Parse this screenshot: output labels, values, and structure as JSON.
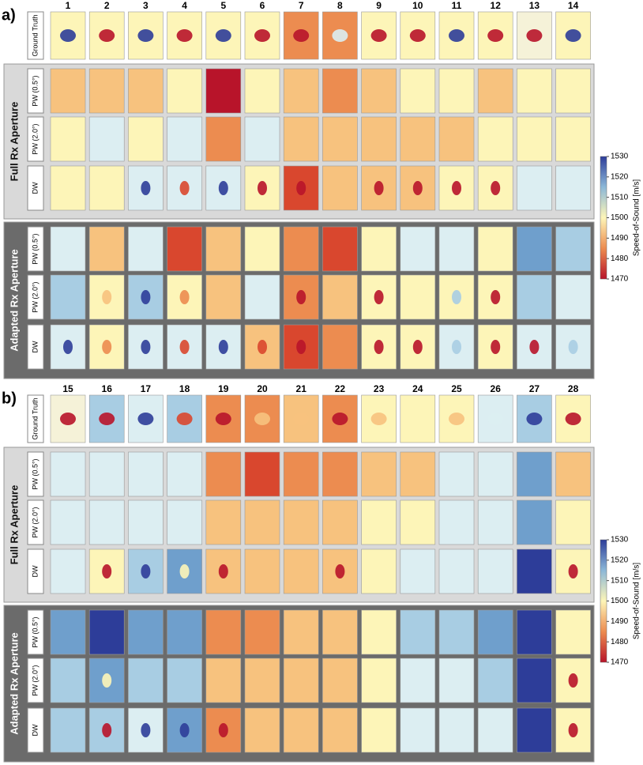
{
  "panels": [
    {
      "label": "a)",
      "columns": [
        1,
        2,
        3,
        4,
        5,
        6,
        7,
        8,
        9,
        10,
        11,
        12,
        13,
        14
      ],
      "ground_truth_label": "Ground Truth",
      "groups": [
        {
          "label": "Full Rx Aperture",
          "rows": [
            "PW (0.5°)",
            "PW (2.0°)",
            "DW"
          ]
        },
        {
          "label": "Adapted Rx Aperture",
          "rows": [
            "PW (0.5°)",
            "PW (2.0°)",
            "DW"
          ]
        }
      ],
      "colorbar": {
        "label": "Speed-of-Sound [m/s]",
        "ticks": [
          1470,
          1480,
          1490,
          1500,
          1510,
          1520,
          1530
        ]
      }
    },
    {
      "label": "b)",
      "columns": [
        15,
        16,
        17,
        18,
        19,
        20,
        21,
        22,
        23,
        24,
        25,
        26,
        27,
        28
      ],
      "ground_truth_label": "Ground Truth",
      "groups": [
        {
          "label": "Full Rx Aperture",
          "rows": [
            "PW (0.5°)",
            "PW (2.0°)",
            "DW"
          ]
        },
        {
          "label": "Adapted Rx Aperture",
          "rows": [
            "PW (0.5°)",
            "PW (2.0°)",
            "DW"
          ]
        }
      ],
      "colorbar": {
        "label": "Speed-of-Sound [m/s]",
        "ticks": [
          1470,
          1480,
          1490,
          1500,
          1510,
          1520,
          1530
        ]
      }
    }
  ]
}
